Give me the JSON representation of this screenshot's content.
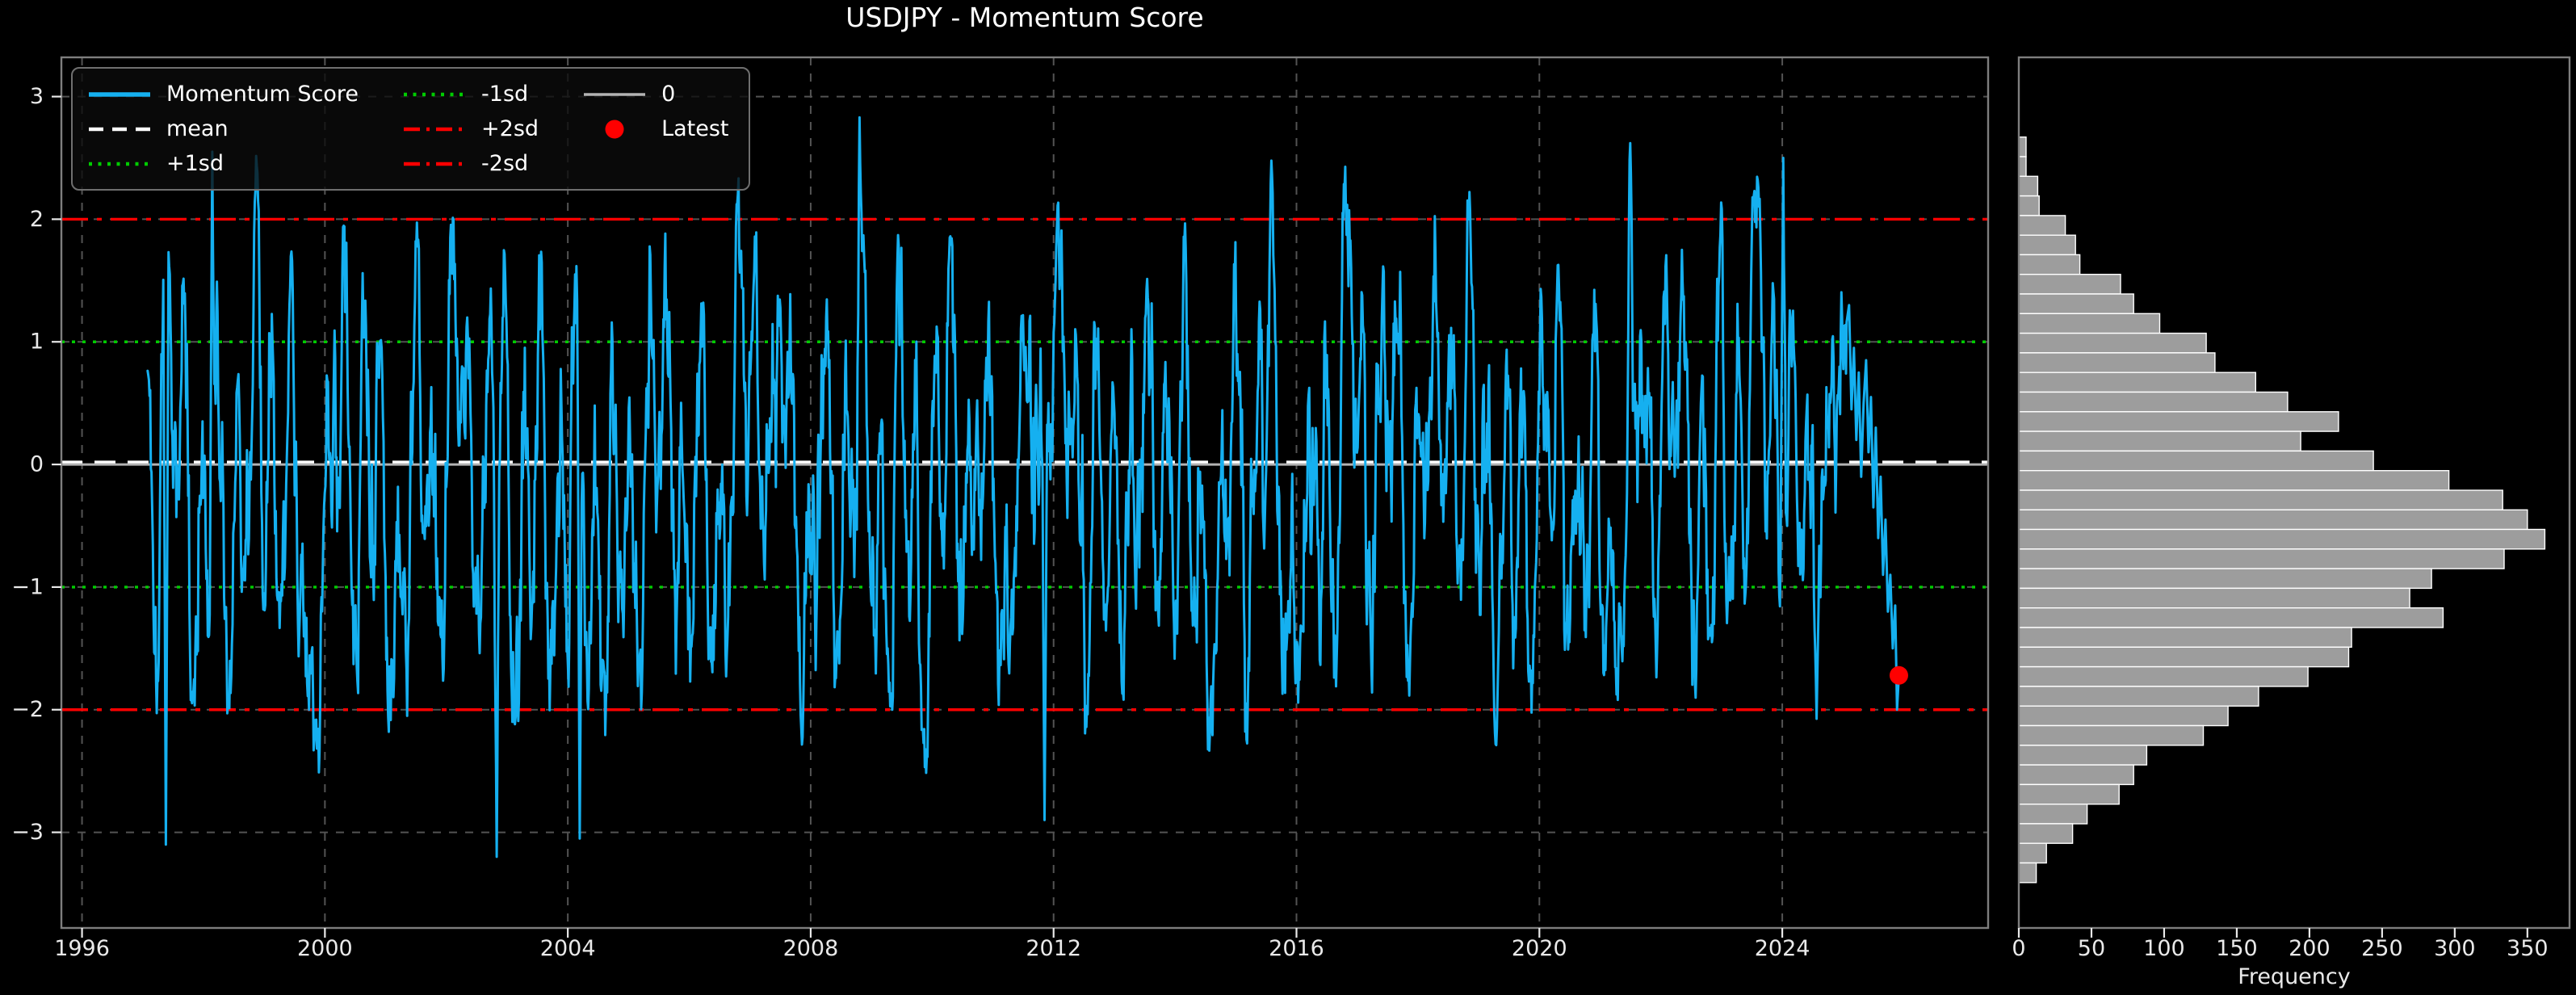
{
  "title": "USDJPY - Momentum Score",
  "colors": {
    "background": "#000000",
    "text": "#e9e9e9",
    "grid": "#535353",
    "spine": "#7e7e7e",
    "series": "#15b0f0",
    "mean": "#ffffff",
    "sd1": "#00cc00",
    "sd2": "#ff0000",
    "zero": "#b3b3b3",
    "latest": "#ff0000",
    "hist_fill": "#9d9d9d",
    "hist_edge": "#ffffff"
  },
  "legend": {
    "columns": [
      [
        {
          "label": "Momentum Score",
          "swatch": "line",
          "color_key": "series",
          "dash": "solid",
          "width": 5.5
        },
        {
          "label": "mean",
          "swatch": "line",
          "color_key": "mean",
          "dash": "dashed",
          "width": 4.5
        },
        {
          "label": "+1sd",
          "swatch": "line",
          "color_key": "sd1",
          "dash": "dotted",
          "width": 4.5
        }
      ],
      [
        {
          "label": "-1sd",
          "swatch": "line",
          "color_key": "sd1",
          "dash": "dotted",
          "width": 4.5
        },
        {
          "label": "+2sd",
          "swatch": "line",
          "color_key": "sd2",
          "dash": "dashdot",
          "width": 4.5
        },
        {
          "label": "-2sd",
          "swatch": "line",
          "color_key": "sd2",
          "dash": "dashdot",
          "width": 4.5
        }
      ],
      [
        {
          "label": "0",
          "swatch": "line",
          "color_key": "zero",
          "dash": "solid",
          "width": 3.5
        },
        {
          "label": "Latest",
          "swatch": "marker",
          "color_key": "latest"
        }
      ]
    ]
  },
  "chart_data": [
    {
      "type": "line",
      "title": "USDJPY - Momentum Score",
      "x_axis": {
        "ticks": [
          1996,
          2000,
          2004,
          2008,
          2012,
          2016,
          2020,
          2024
        ],
        "tick_labels": [
          "1996",
          "2000",
          "2004",
          "2008",
          "2012",
          "2016",
          "2020",
          "2024"
        ],
        "lim": [
          1995.66,
          2027.39
        ]
      },
      "y_axis": {
        "ticks": [
          3,
          2,
          1,
          0,
          -1,
          -2,
          -3
        ],
        "tick_labels": [
          "3",
          "2",
          "1",
          "0",
          "−1",
          "−2",
          "−3"
        ],
        "lim": [
          -3.78,
          3.32
        ]
      },
      "grid": true,
      "reference_lines": [
        {
          "name": "0",
          "value": 0.0,
          "style": "solid",
          "color_key": "zero"
        },
        {
          "name": "mean",
          "value": 0.02,
          "style": "dashed",
          "color_key": "mean"
        },
        {
          "name": "+1sd",
          "value": 1.0,
          "style": "dotted",
          "color_key": "sd1"
        },
        {
          "name": "-1sd",
          "value": -1.0,
          "style": "dotted",
          "color_key": "sd1"
        },
        {
          "name": "+2sd",
          "value": 2.0,
          "style": "dashdot",
          "color_key": "sd2"
        },
        {
          "name": "-2sd",
          "value": -2.0,
          "style": "dashdot",
          "color_key": "sd2"
        }
      ],
      "series": {
        "name": "Momentum Score",
        "color_key": "series",
        "synthetic_reconstruction": true,
        "seed": 1337,
        "n_points": 2600,
        "x_start": 1997.08,
        "x_end": 2025.06,
        "soft_clip": 3.6,
        "hard_clip": [
          -3.25,
          2.85
        ],
        "notable_extremes": [
          [
            1997.38,
            -3.1
          ],
          [
            1998.15,
            2.55
          ],
          [
            2002.83,
            -3.2
          ],
          [
            2004.2,
            -3.05
          ],
          [
            2008.8,
            2.83
          ],
          [
            2011.85,
            -2.9
          ],
          [
            2021.5,
            2.62
          ],
          [
            2024.02,
            2.5
          ]
        ],
        "tail_points": [
          [
            2025.1,
            1.3
          ],
          [
            2025.14,
            0.45
          ],
          [
            2025.18,
            0.95
          ],
          [
            2025.22,
            0.2
          ],
          [
            2025.26,
            0.75
          ],
          [
            2025.3,
            -0.1
          ],
          [
            2025.34,
            0.5
          ],
          [
            2025.38,
            0.85
          ],
          [
            2025.42,
            0.1
          ],
          [
            2025.46,
            0.55
          ],
          [
            2025.5,
            -0.35
          ],
          [
            2025.54,
            0.3
          ],
          [
            2025.58,
            -0.6
          ],
          [
            2025.62,
            -0.1
          ],
          [
            2025.66,
            -0.9
          ],
          [
            2025.7,
            -0.45
          ],
          [
            2025.74,
            -1.2
          ],
          [
            2025.78,
            -0.9
          ],
          [
            2025.82,
            -1.5
          ],
          [
            2025.86,
            -1.15
          ],
          [
            2025.89,
            -2.0
          ],
          [
            2025.92,
            -1.72
          ]
        ]
      },
      "latest_point": {
        "label": "Latest",
        "x": 2025.92,
        "y": -1.72
      }
    },
    {
      "type": "bar",
      "orientation": "horizontal",
      "xlabel": "Frequency",
      "x_axis": {
        "ticks": [
          0,
          50,
          100,
          150,
          200,
          250,
          300,
          350
        ],
        "tick_labels": [
          "0",
          "50",
          "100",
          "150",
          "200",
          "250",
          "300",
          "350"
        ],
        "lim": [
          0,
          379
        ]
      },
      "bins": {
        "top_value": 2.67,
        "width": 0.16,
        "count": 38
      },
      "frequencies": [
        5,
        5,
        13,
        14,
        32,
        39,
        42,
        70,
        79,
        97,
        129,
        135,
        163,
        185,
        220,
        194,
        244,
        296,
        333,
        350,
        362,
        334,
        284,
        269,
        292,
        229,
        227,
        199,
        165,
        144,
        127,
        88,
        79,
        69,
        47,
        37,
        19,
        12
      ]
    }
  ]
}
